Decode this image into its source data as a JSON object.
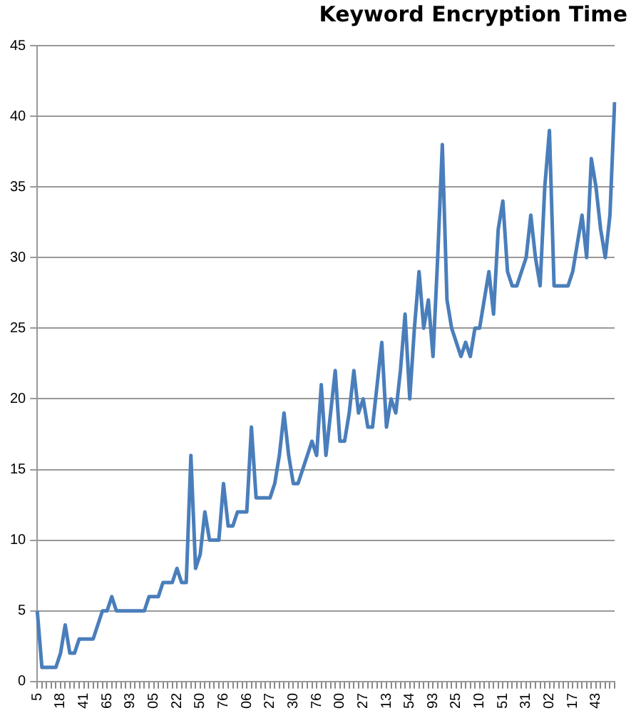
{
  "chart_data": {
    "type": "line",
    "title": "Keyword Encryption Time",
    "categories": [
      "5",
      null,
      null,
      null,
      null,
      "18",
      null,
      null,
      null,
      null,
      "41",
      null,
      null,
      null,
      null,
      "65",
      null,
      null,
      null,
      null,
      "93",
      null,
      null,
      null,
      null,
      "05",
      null,
      null,
      null,
      null,
      "22",
      null,
      null,
      null,
      null,
      "50",
      null,
      null,
      null,
      null,
      "76",
      null,
      null,
      null,
      null,
      "06",
      null,
      null,
      null,
      null,
      "27",
      null,
      null,
      null,
      null,
      "30",
      null,
      null,
      null,
      null,
      "76",
      null,
      null,
      null,
      null,
      "00",
      null,
      null,
      null,
      null,
      "27",
      null,
      null,
      null,
      null,
      "13",
      null,
      null,
      null,
      null,
      "54",
      null,
      null,
      null,
      null,
      "93",
      null,
      null,
      null,
      null,
      "25",
      null,
      null,
      null,
      null,
      "10",
      null,
      null,
      null,
      null,
      "51",
      null,
      null,
      null,
      null,
      "31",
      null,
      null,
      null,
      null,
      "02",
      null,
      null,
      null,
      null,
      "17",
      null,
      null,
      null,
      null,
      "43",
      null,
      null,
      null,
      null
    ],
    "series": [
      {
        "color": "#4a7ebb",
        "values": [
          5,
          1,
          1,
          1,
          1,
          2,
          4,
          2,
          2,
          3,
          3,
          3,
          3,
          4,
          5,
          5,
          6,
          5,
          5,
          5,
          5,
          5,
          5,
          5,
          6,
          6,
          6,
          7,
          7,
          7,
          8,
          7,
          7,
          16,
          8,
          9,
          12,
          10,
          10,
          10,
          14,
          11,
          11,
          12,
          12,
          12,
          18,
          13,
          13,
          13,
          13,
          14,
          16,
          19,
          16,
          14,
          14,
          15,
          16,
          17,
          16,
          21,
          16,
          19,
          22,
          17,
          17,
          19,
          22,
          19,
          20,
          18,
          18,
          21,
          24,
          18,
          20,
          19,
          22,
          26,
          20,
          25,
          29,
          25,
          27,
          23,
          30,
          38,
          27,
          25,
          24,
          23,
          24,
          23,
          25,
          25,
          27,
          29,
          26,
          32,
          34,
          29,
          28,
          28,
          29,
          30,
          33,
          30,
          28,
          35,
          39,
          28,
          28,
          28,
          28,
          29,
          31,
          33,
          30,
          37,
          35,
          32,
          30,
          33,
          41
        ]
      }
    ],
    "ylim": [
      0,
      45
    ],
    "yticks": [
      0,
      5,
      10,
      15,
      20,
      25,
      30,
      35,
      40,
      45
    ],
    "grid": "y",
    "legend": false,
    "marker": "none",
    "line_style": "solid"
  }
}
